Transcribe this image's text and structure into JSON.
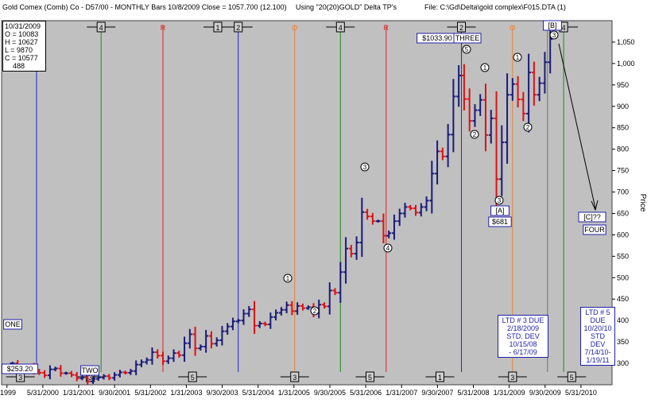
{
  "header": {
    "left": "Gold Comex (Comb) Co - D57/00  -  MONTHLY Bars  10/8/2009 Close = 1057.700 (12.100)",
    "mid": "Using \"20(20)GOLD\" Delta TP's",
    "right": "File: C:\\Gd\\Delta\\gold complex\\F015.DTA (1)"
  },
  "info_box": {
    "date": "10/31/2009",
    "o": "O = 10083",
    "h": "H = 10627",
    "l": "L = 9870",
    "c": "C = 10577",
    "v": "488"
  },
  "notes": {
    "ltd3": [
      "LTD # 3 DUE",
      "2/18/2009",
      "STD. DEV",
      "10/15/08",
      " - 6/17/09"
    ],
    "ltd5": [
      "LTD # 5",
      "DUE",
      "10/20/10",
      "STD DEV",
      "7/14/10-",
      "1/19/11"
    ]
  },
  "colors": {
    "up_bar": "#1a1a7a",
    "down_bar": "#e01010",
    "plot_bg": "#c0c0c0",
    "green_line": "#1f8a1f",
    "red_line": "#e02020",
    "orange_line": "#f08030",
    "blue_line": "#2020d0",
    "gray_line": "#707070"
  },
  "chart_data": {
    "type": "ohlc-bar",
    "ylabel": "Price",
    "ylim": [
      250,
      1100
    ],
    "y_ticks": [
      "300",
      "350",
      "400",
      "450",
      "500",
      "550",
      "600",
      "650",
      "700",
      "750",
      "800",
      "850",
      "900",
      "950",
      "1,000",
      "1,050"
    ],
    "x_ticks": [
      "/1999",
      "5/31/2000",
      "1/31/2001",
      "9/30/2001",
      "5/31/2002",
      "1/31/2003",
      "9/30/2003",
      "5/31/2004",
      "1/31/2005",
      "9/30/2005",
      "5/31/2006",
      "1/31/2007",
      "9/30/2007",
      "5/31/2008",
      "1/31/2009",
      "9/30/2009",
      "5/31/2010"
    ],
    "grid": false,
    "labels": {
      "one": "ONE",
      "low_price": "$253.20",
      "two": "TWO",
      "high_price": "$1033.90",
      "three": "THREE",
      "a": "[A]",
      "a_price": "$681",
      "b": "[B]",
      "c": "[C]??",
      "four": "FOUR"
    },
    "circled": [
      "1",
      "2",
      "3",
      "4",
      "5",
      "1",
      "2",
      "3",
      "1",
      "2",
      "3"
    ],
    "top_cycle_labels": [
      "O",
      "4",
      "R",
      "1",
      "2",
      "O",
      "4",
      "R",
      "2",
      "O",
      "4"
    ],
    "bottom_cycle_labels": [
      "3",
      "3",
      "5",
      "3",
      "5",
      "1",
      "3",
      "5"
    ],
    "vline_labels": [
      "O",
      "O",
      "O",
      "R",
      "R",
      "R"
    ],
    "monthly_close": [
      [
        1999.8,
        300
      ],
      [
        1999.9,
        290
      ],
      [
        2000.0,
        287
      ],
      [
        2000.1,
        293
      ],
      [
        2000.2,
        282
      ],
      [
        2000.3,
        278
      ],
      [
        2000.4,
        272
      ],
      [
        2000.5,
        286
      ],
      [
        2000.6,
        288
      ],
      [
        2000.7,
        277
      ],
      [
        2000.8,
        277
      ],
      [
        2000.9,
        273
      ],
      [
        2001.0,
        265
      ],
      [
        2001.1,
        267
      ],
      [
        2001.2,
        258
      ],
      [
        2001.3,
        264
      ],
      [
        2001.4,
        267
      ],
      [
        2001.5,
        270
      ],
      [
        2001.6,
        266
      ],
      [
        2001.7,
        273
      ],
      [
        2001.8,
        279
      ],
      [
        2001.9,
        278
      ],
      [
        2002.0,
        282
      ],
      [
        2002.1,
        297
      ],
      [
        2002.2,
        303
      ],
      [
        2002.3,
        308
      ],
      [
        2002.4,
        326
      ],
      [
        2002.5,
        318
      ],
      [
        2002.6,
        305
      ],
      [
        2002.7,
        312
      ],
      [
        2002.8,
        324
      ],
      [
        2002.9,
        319
      ],
      [
        2003.0,
        347
      ],
      [
        2003.1,
        368
      ],
      [
        2003.2,
        335
      ],
      [
        2003.3,
        339
      ],
      [
        2003.4,
        364
      ],
      [
        2003.5,
        346
      ],
      [
        2003.6,
        354
      ],
      [
        2003.7,
        375
      ],
      [
        2003.8,
        386
      ],
      [
        2003.9,
        398
      ],
      [
        2004.0,
        400
      ],
      [
        2004.1,
        416
      ],
      [
        2004.2,
        426
      ],
      [
        2004.3,
        388
      ],
      [
        2004.4,
        393
      ],
      [
        2004.5,
        391
      ],
      [
        2004.6,
        408
      ],
      [
        2004.7,
        418
      ],
      [
        2004.8,
        425
      ],
      [
        2004.9,
        436
      ],
      [
        2005.0,
        422
      ],
      [
        2005.1,
        434
      ],
      [
        2005.2,
        429
      ],
      [
        2005.3,
        431
      ],
      [
        2005.4,
        417
      ],
      [
        2005.5,
        437
      ],
      [
        2005.6,
        433
      ],
      [
        2005.7,
        470
      ],
      [
        2005.8,
        465
      ],
      [
        2005.9,
        513
      ],
      [
        2006.0,
        568
      ],
      [
        2006.1,
        556
      ],
      [
        2006.2,
        582
      ],
      [
        2006.3,
        653
      ],
      [
        2006.4,
        643
      ],
      [
        2006.5,
        632
      ],
      [
        2006.6,
        632
      ],
      [
        2006.7,
        598
      ],
      [
        2006.8,
        604
      ],
      [
        2006.9,
        632
      ],
      [
        2007.0,
        650
      ],
      [
        2007.1,
        665
      ],
      [
        2007.2,
        662
      ],
      [
        2007.3,
        652
      ],
      [
        2007.4,
        665
      ],
      [
        2007.5,
        680
      ],
      [
        2007.6,
        743
      ],
      [
        2007.7,
        795
      ],
      [
        2007.8,
        783
      ],
      [
        2007.9,
        834
      ],
      [
        2008.0,
        923
      ],
      [
        2008.1,
        972
      ],
      [
        2008.2,
        917
      ],
      [
        2008.3,
        866
      ],
      [
        2008.4,
        891
      ],
      [
        2008.5,
        915
      ],
      [
        2008.6,
        833
      ],
      [
        2008.7,
        872
      ],
      [
        2008.8,
        730
      ],
      [
        2008.9,
        816
      ],
      [
        2009.0,
        927
      ],
      [
        2009.1,
        952
      ],
      [
        2009.2,
        916
      ],
      [
        2009.3,
        883
      ],
      [
        2009.4,
        979
      ],
      [
        2009.5,
        927
      ],
      [
        2009.6,
        954
      ],
      [
        2009.7,
        1003
      ],
      [
        2009.8,
        1057
      ]
    ]
  }
}
